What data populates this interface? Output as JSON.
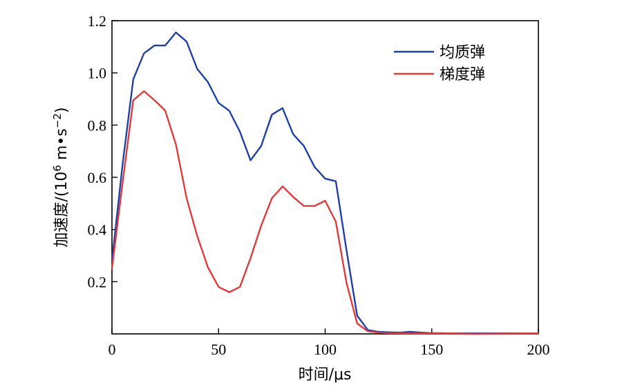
{
  "chart_data": {
    "type": "line",
    "title": "",
    "xlabel": "时间/μs",
    "ylabel": {
      "prefix": "加速度/(10",
      "exp1": "6",
      "mid": " m",
      "dot": "•",
      "s": "s",
      "exp2": "−2",
      "suffix": ")"
    },
    "xlim": [
      0,
      200
    ],
    "ylim": [
      0,
      1.2
    ],
    "xticks": [
      0,
      50,
      100,
      150,
      200
    ],
    "xtick_labels": [
      "0",
      "50",
      "100",
      "150",
      "200"
    ],
    "yticks": [
      0.2,
      0.4,
      0.6,
      0.8,
      1.0,
      1.2
    ],
    "ytick_labels": [
      "0.2",
      "0.4",
      "0.6",
      "0.8",
      "1.0",
      "1.2"
    ],
    "grid": false,
    "legend_position": "top-right",
    "series": [
      {
        "name": "均质弹",
        "color": "#1f3fa3",
        "x": [
          0,
          5,
          10,
          15,
          20,
          25,
          30,
          35,
          40,
          45,
          50,
          55,
          60,
          65,
          70,
          75,
          80,
          85,
          90,
          95,
          100,
          105,
          110,
          115,
          120,
          125,
          130,
          135,
          140,
          145,
          150,
          155,
          160,
          170,
          180,
          190,
          200
        ],
        "y": [
          0.28,
          0.65,
          0.975,
          1.075,
          1.105,
          1.105,
          1.155,
          1.12,
          1.015,
          0.965,
          0.885,
          0.855,
          0.775,
          0.665,
          0.72,
          0.84,
          0.865,
          0.765,
          0.72,
          0.64,
          0.595,
          0.585,
          0.32,
          0.07,
          0.015,
          0.008,
          0.006,
          0.005,
          0.008,
          0.005,
          0.003,
          0.003,
          0.002,
          0.002,
          0.002,
          0.002,
          0.002
        ]
      },
      {
        "name": "梯度弹",
        "color": "#e03a3a",
        "x": [
          0,
          5,
          10,
          15,
          20,
          25,
          30,
          35,
          40,
          45,
          50,
          55,
          60,
          65,
          70,
          75,
          80,
          85,
          90,
          95,
          100,
          105,
          110,
          115,
          120,
          125,
          130,
          140,
          150,
          160,
          170,
          180,
          190,
          200
        ],
        "y": [
          0.25,
          0.58,
          0.895,
          0.93,
          0.895,
          0.855,
          0.725,
          0.52,
          0.375,
          0.255,
          0.18,
          0.16,
          0.18,
          0.29,
          0.415,
          0.52,
          0.565,
          0.525,
          0.49,
          0.49,
          0.51,
          0.43,
          0.195,
          0.04,
          0.01,
          0.005,
          0.003,
          0.002,
          0.002,
          0.002,
          0.0,
          0.001,
          0.002,
          0.002
        ]
      }
    ]
  }
}
